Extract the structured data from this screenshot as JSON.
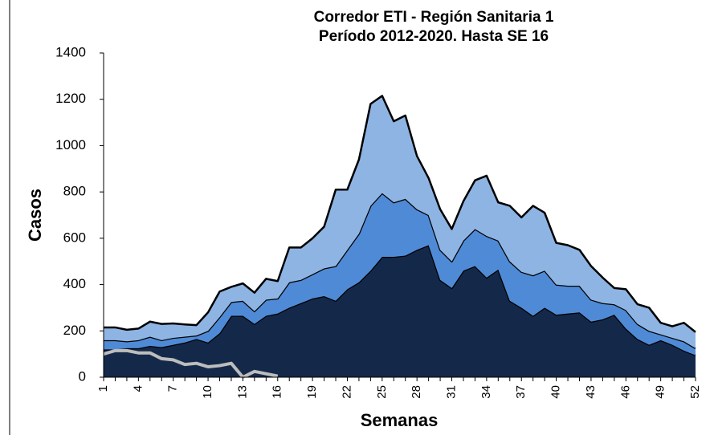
{
  "chart_data": {
    "type": "area",
    "stacked": true,
    "title": [
      "Corredor ETI - Región Sanitaria 1",
      "Período 2012-2020. Hasta SE 16"
    ],
    "xlabel": "Semanas",
    "ylabel": "Casos",
    "categories": [
      1,
      null,
      null,
      4,
      null,
      null,
      7,
      null,
      null,
      10,
      null,
      null,
      13,
      null,
      null,
      16,
      null,
      null,
      19,
      null,
      null,
      22,
      null,
      null,
      25,
      null,
      null,
      28,
      null,
      null,
      31,
      null,
      null,
      34,
      null,
      null,
      37,
      null,
      null,
      40,
      null,
      null,
      43,
      null,
      null,
      46,
      null,
      null,
      49,
      null,
      null,
      52
    ],
    "ylim": [
      0,
      1400
    ],
    "yticks": [
      0,
      200,
      400,
      600,
      800,
      1000,
      1200,
      1400
    ],
    "series": [
      {
        "color": "#14294a",
        "values": [
          120,
          120,
          125,
          125,
          135,
          130,
          140,
          150,
          165,
          150,
          190,
          265,
          265,
          230,
          265,
          275,
          300,
          320,
          340,
          350,
          330,
          380,
          410,
          460,
          520,
          520,
          525,
          550,
          570,
          420,
          385,
          460,
          480,
          430,
          465,
          330,
          300,
          265,
          300,
          270,
          275,
          280,
          240,
          250,
          270,
          210,
          165,
          140,
          160,
          140,
          115,
          95
        ]
      },
      {
        "color": "#4f8ad6",
        "values": [
          40,
          40,
          30,
          35,
          40,
          30,
          30,
          25,
          15,
          50,
          70,
          60,
          65,
          55,
          70,
          65,
          110,
          100,
          105,
          120,
          150,
          170,
          210,
          280,
          275,
          235,
          245,
          175,
          130,
          130,
          115,
          130,
          160,
          180,
          125,
          170,
          155,
          175,
          160,
          130,
          120,
          115,
          95,
          70,
          45,
          80,
          65,
          60,
          25,
          30,
          40,
          30
        ]
      },
      {
        "color": "#8eb4e3",
        "values": [
          55,
          55,
          50,
          50,
          65,
          70,
          62,
          53,
          45,
          80,
          110,
          65,
          75,
          80,
          90,
          75,
          150,
          140,
          155,
          180,
          330,
          260,
          320,
          440,
          420,
          350,
          360,
          230,
          160,
          175,
          140,
          170,
          210,
          260,
          165,
          240,
          235,
          300,
          250,
          180,
          175,
          155,
          145,
          110,
          70,
          90,
          85,
          100,
          50,
          50,
          80,
          70
        ]
      },
      {
        "type": "line",
        "color": "#bdbdbd",
        "values": [
          100,
          115,
          115,
          105,
          105,
          80,
          75,
          55,
          60,
          45,
          50,
          60,
          0,
          25,
          15,
          5,
          null,
          null,
          null,
          null,
          null,
          null,
          null,
          null,
          null,
          null,
          null,
          null,
          null,
          null,
          null,
          null,
          null,
          null,
          null,
          null,
          null,
          null,
          null,
          null,
          null,
          null,
          null,
          null,
          null,
          null,
          null,
          null,
          null,
          null,
          null,
          null
        ]
      }
    ]
  }
}
